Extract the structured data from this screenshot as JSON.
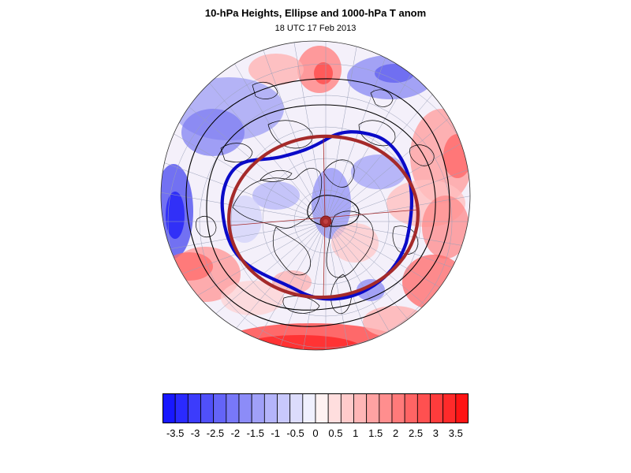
{
  "title": "10-hPa Heights, Ellipse and 1000-hPa T anom",
  "subtitle": "18 UTC 17 Feb 2013",
  "colors": {
    "ellipse": "#a52a2a",
    "vortex_contour": "#0000cc",
    "height_contours": "#000000",
    "coastlines": "#000000",
    "graticule": "#9aa0b8",
    "neg_max": "#1010ff",
    "pos_max": "#ff1010"
  },
  "colorbar": {
    "colors": [
      "#1818ff",
      "#2a2aff",
      "#3c3cfc",
      "#5050fa",
      "#6464f8",
      "#7878f8",
      "#8c8cf8",
      "#a0a0f8",
      "#b4b4fa",
      "#c8c8fc",
      "#dcdcfc",
      "#f0f0fe",
      "#fff2f2",
      "#ffdede",
      "#ffcaca",
      "#ffb6b6",
      "#ffa2a2",
      "#ff8e8e",
      "#ff7a7a",
      "#ff6464",
      "#ff5050",
      "#ff3c3c",
      "#ff2a2a",
      "#ff1414"
    ],
    "labels": [
      "-3.5",
      "-3",
      "-2.5",
      "-2",
      "-1.5",
      "-1",
      "-0.5",
      "0",
      "0.5",
      "1",
      "1.5",
      "2",
      "2.5",
      "3",
      "3.5"
    ]
  }
}
